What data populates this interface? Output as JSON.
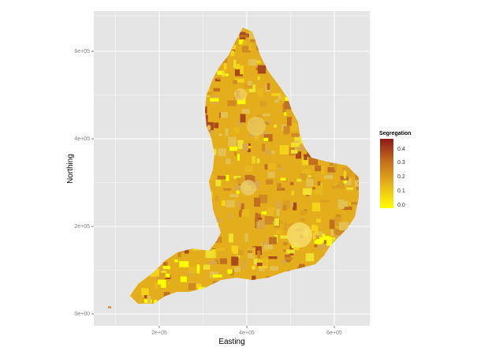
{
  "plot": {
    "xlabel": "Easting",
    "ylabel": "Northing",
    "x_ticks": [
      "2e+05",
      "4e+05",
      "6e+05"
    ],
    "y_ticks": [
      "0e+00",
      "2e+05",
      "4e+05",
      "6e+05"
    ],
    "panel_background": "#e5e5e5",
    "grid": true
  },
  "legend": {
    "title": "Segregation",
    "labels": [
      "0.4",
      "0.3",
      "0.2",
      "0.1",
      "0.0"
    ],
    "color_low": "#ffff00",
    "color_high": "#8b1a1a",
    "placement": "right"
  }
}
